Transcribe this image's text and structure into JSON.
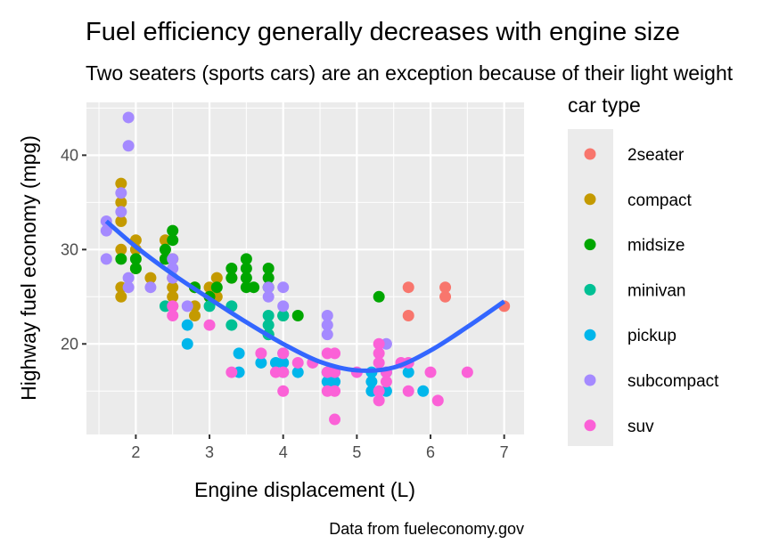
{
  "chart_data": {
    "type": "scatter",
    "title": "Fuel efficiency generally decreases with engine size",
    "subtitle": "Two seaters (sports cars) are an exception because of their light weight",
    "caption": "Data from fueleconomy.gov",
    "xlabel": "Engine displacement (L)",
    "ylabel": "Highway fuel economy (mpg)",
    "xlim": [
      1.33,
      7.27
    ],
    "ylim": [
      10.4,
      45.6
    ],
    "xticks": [
      "2",
      "3",
      "4",
      "5",
      "6",
      "7"
    ],
    "yticks": [
      "20",
      "30",
      "40"
    ],
    "grid": true,
    "legend": {
      "title": "car type",
      "placement": "right"
    },
    "series": [
      {
        "name": "2seater",
        "color": "#F8766D",
        "points": [
          [
            5.7,
            26
          ],
          [
            5.7,
            23
          ],
          [
            6.2,
            26
          ],
          [
            6.2,
            25
          ],
          [
            7.0,
            24
          ]
        ]
      },
      {
        "name": "compact",
        "color": "#C49A00",
        "points": [
          [
            1.8,
            37
          ],
          [
            1.8,
            35
          ],
          [
            1.8,
            33
          ],
          [
            1.8,
            30
          ],
          [
            1.8,
            26
          ],
          [
            1.8,
            25
          ],
          [
            2.0,
            31
          ],
          [
            2.0,
            30
          ],
          [
            2.0,
            28
          ],
          [
            2.2,
            27
          ],
          [
            2.4,
            31
          ],
          [
            2.4,
            29
          ],
          [
            2.5,
            29
          ],
          [
            2.5,
            27
          ],
          [
            2.5,
            26
          ],
          [
            2.5,
            25
          ],
          [
            2.5,
            24
          ],
          [
            2.8,
            26
          ],
          [
            2.8,
            24
          ],
          [
            2.8,
            23
          ],
          [
            3.0,
            26
          ],
          [
            3.0,
            25
          ],
          [
            3.1,
            27
          ],
          [
            3.1,
            25
          ],
          [
            3.3,
            27
          ]
        ]
      },
      {
        "name": "midsize",
        "color": "#00A600",
        "points": [
          [
            1.8,
            29
          ],
          [
            2.0,
            29
          ],
          [
            2.0,
            28
          ],
          [
            2.4,
            30
          ],
          [
            2.5,
            32
          ],
          [
            2.5,
            31
          ],
          [
            2.4,
            29
          ],
          [
            2.8,
            26
          ],
          [
            3.0,
            25
          ],
          [
            3.1,
            26
          ],
          [
            3.3,
            28
          ],
          [
            3.3,
            27
          ],
          [
            3.5,
            29
          ],
          [
            3.5,
            28
          ],
          [
            3.5,
            27
          ],
          [
            3.5,
            26
          ],
          [
            3.6,
            26
          ],
          [
            3.8,
            28
          ],
          [
            3.8,
            27
          ],
          [
            3.8,
            26
          ],
          [
            3.8,
            21
          ],
          [
            4.0,
            23
          ],
          [
            4.2,
            23
          ],
          [
            5.3,
            25
          ]
        ]
      },
      {
        "name": "minivan",
        "color": "#00C094",
        "points": [
          [
            2.4,
            24
          ],
          [
            3.0,
            24
          ],
          [
            3.3,
            24
          ],
          [
            3.3,
            22
          ],
          [
            3.8,
            23
          ],
          [
            3.8,
            22
          ],
          [
            3.8,
            21
          ],
          [
            4.0,
            23
          ]
        ]
      },
      {
        "name": "pickup",
        "color": "#00B6EB",
        "points": [
          [
            2.7,
            22
          ],
          [
            2.7,
            20
          ],
          [
            3.4,
            19
          ],
          [
            3.4,
            17
          ],
          [
            3.7,
            18
          ],
          [
            3.9,
            18
          ],
          [
            4.0,
            19
          ],
          [
            4.0,
            18
          ],
          [
            4.0,
            17
          ],
          [
            4.2,
            17
          ],
          [
            4.6,
            17
          ],
          [
            4.6,
            16
          ],
          [
            4.7,
            17
          ],
          [
            4.7,
            16
          ],
          [
            5.2,
            17
          ],
          [
            5.2,
            16
          ],
          [
            5.2,
            15
          ],
          [
            5.4,
            17
          ],
          [
            5.4,
            15
          ],
          [
            5.7,
            17
          ],
          [
            5.9,
            15
          ]
        ]
      },
      {
        "name": "subcompact",
        "color": "#A58AFF",
        "points": [
          [
            1.9,
            44
          ],
          [
            1.9,
            41
          ],
          [
            1.6,
            33
          ],
          [
            1.6,
            32
          ],
          [
            1.6,
            29
          ],
          [
            1.8,
            36
          ],
          [
            1.8,
            34
          ],
          [
            1.9,
            27
          ],
          [
            1.9,
            26
          ],
          [
            2.2,
            26
          ],
          [
            2.5,
            29
          ],
          [
            2.5,
            28
          ],
          [
            2.5,
            27
          ],
          [
            2.7,
            24
          ],
          [
            3.8,
            26
          ],
          [
            3.8,
            25
          ],
          [
            4.0,
            26
          ],
          [
            4.0,
            24
          ],
          [
            4.6,
            23
          ],
          [
            4.6,
            22
          ],
          [
            4.6,
            21
          ],
          [
            5.4,
            20
          ]
        ]
      },
      {
        "name": "suv",
        "color": "#FB61D7",
        "points": [
          [
            2.5,
            24
          ],
          [
            2.5,
            23
          ],
          [
            3.0,
            22
          ],
          [
            3.3,
            17
          ],
          [
            3.7,
            19
          ],
          [
            3.9,
            17
          ],
          [
            4.0,
            19
          ],
          [
            4.0,
            17
          ],
          [
            4.0,
            15
          ],
          [
            4.2,
            18
          ],
          [
            4.4,
            18
          ],
          [
            4.6,
            19
          ],
          [
            4.6,
            17
          ],
          [
            4.6,
            15
          ],
          [
            4.7,
            19
          ],
          [
            4.7,
            17
          ],
          [
            4.7,
            15
          ],
          [
            4.7,
            12
          ],
          [
            5.0,
            17
          ],
          [
            5.3,
            20
          ],
          [
            5.3,
            19
          ],
          [
            5.3,
            18
          ],
          [
            5.3,
            15
          ],
          [
            5.3,
            14
          ],
          [
            5.4,
            17
          ],
          [
            5.4,
            16
          ],
          [
            5.6,
            18
          ],
          [
            5.7,
            18
          ],
          [
            5.7,
            15
          ],
          [
            6.0,
            17
          ],
          [
            6.1,
            14
          ],
          [
            6.5,
            17
          ]
        ]
      }
    ],
    "smooth": {
      "color": "#3366FF",
      "points": [
        [
          1.6,
          33
        ],
        [
          2.0,
          30.3
        ],
        [
          2.5,
          27.4
        ],
        [
          3.0,
          24.8
        ],
        [
          3.5,
          22.3
        ],
        [
          4.0,
          20.0
        ],
        [
          4.5,
          18.1
        ],
        [
          5.0,
          17.2
        ],
        [
          5.5,
          17.5
        ],
        [
          6.0,
          19.3
        ],
        [
          6.5,
          21.8
        ],
        [
          7.0,
          24.5
        ]
      ]
    }
  }
}
